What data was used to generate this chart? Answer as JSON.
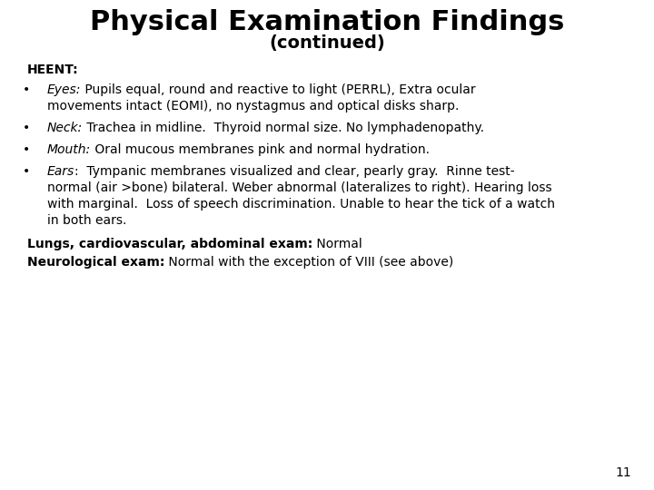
{
  "title": "Physical Examination Findings",
  "subtitle": "(continued)",
  "background_color": "#ffffff",
  "text_color": "#000000",
  "title_fontsize": 22,
  "subtitle_fontsize": 14,
  "body_fontsize": 10,
  "page_number": "11"
}
